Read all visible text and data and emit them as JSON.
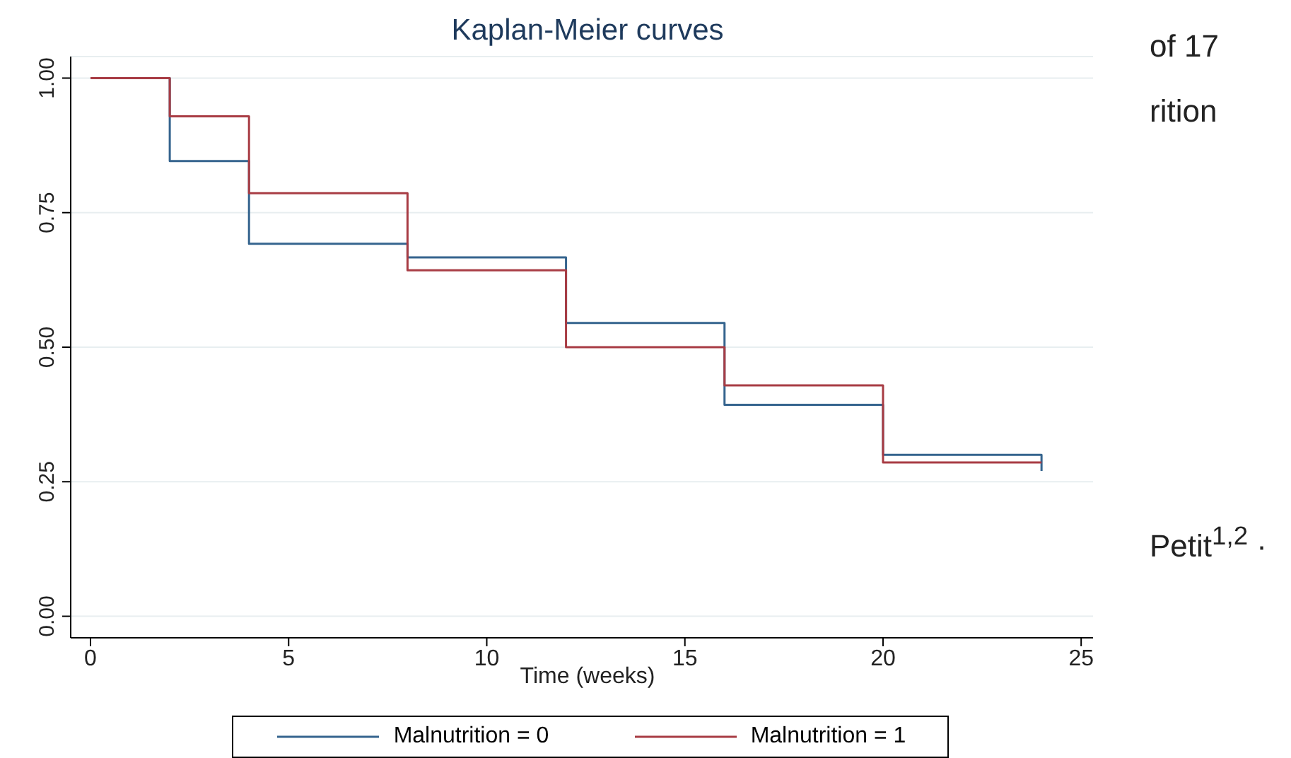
{
  "chart_data": {
    "type": "step",
    "title": "Kaplan-Meier curves",
    "xlabel": "Time (weeks)",
    "xlim": [
      -0.5,
      25.3
    ],
    "xticks": [
      0,
      5,
      10,
      15,
      20,
      25
    ],
    "ylim": [
      -0.04,
      1.04
    ],
    "yticks": [
      {
        "value": 0,
        "label": "0.00"
      },
      {
        "value": 0.25,
        "label": "0.25"
      },
      {
        "value": 0.5,
        "label": "0.50"
      },
      {
        "value": 0.75,
        "label": "0.75"
      },
      {
        "value": 1,
        "label": "1.00"
      }
    ],
    "grid": "y",
    "legend": "bottom",
    "series": [
      {
        "name": "Malnutrition = 0",
        "color": "#35648e",
        "x": [
          0,
          2,
          4,
          8,
          12,
          16,
          20,
          24
        ],
        "values": [
          1,
          0.846,
          0.692,
          0.667,
          0.545,
          0.393,
          0.3,
          0.27
        ]
      },
      {
        "name": "Malnutrition = 1",
        "color": "#a83c44",
        "x": [
          0,
          2,
          4,
          8,
          12,
          16,
          20,
          24
        ],
        "values": [
          1,
          0.929,
          0.786,
          0.643,
          0.5,
          0.429,
          0.286,
          0.286
        ]
      }
    ],
    "annotations": [
      "of 17",
      "rition",
      "Petit$^{1,2}$ ·"
    ]
  }
}
